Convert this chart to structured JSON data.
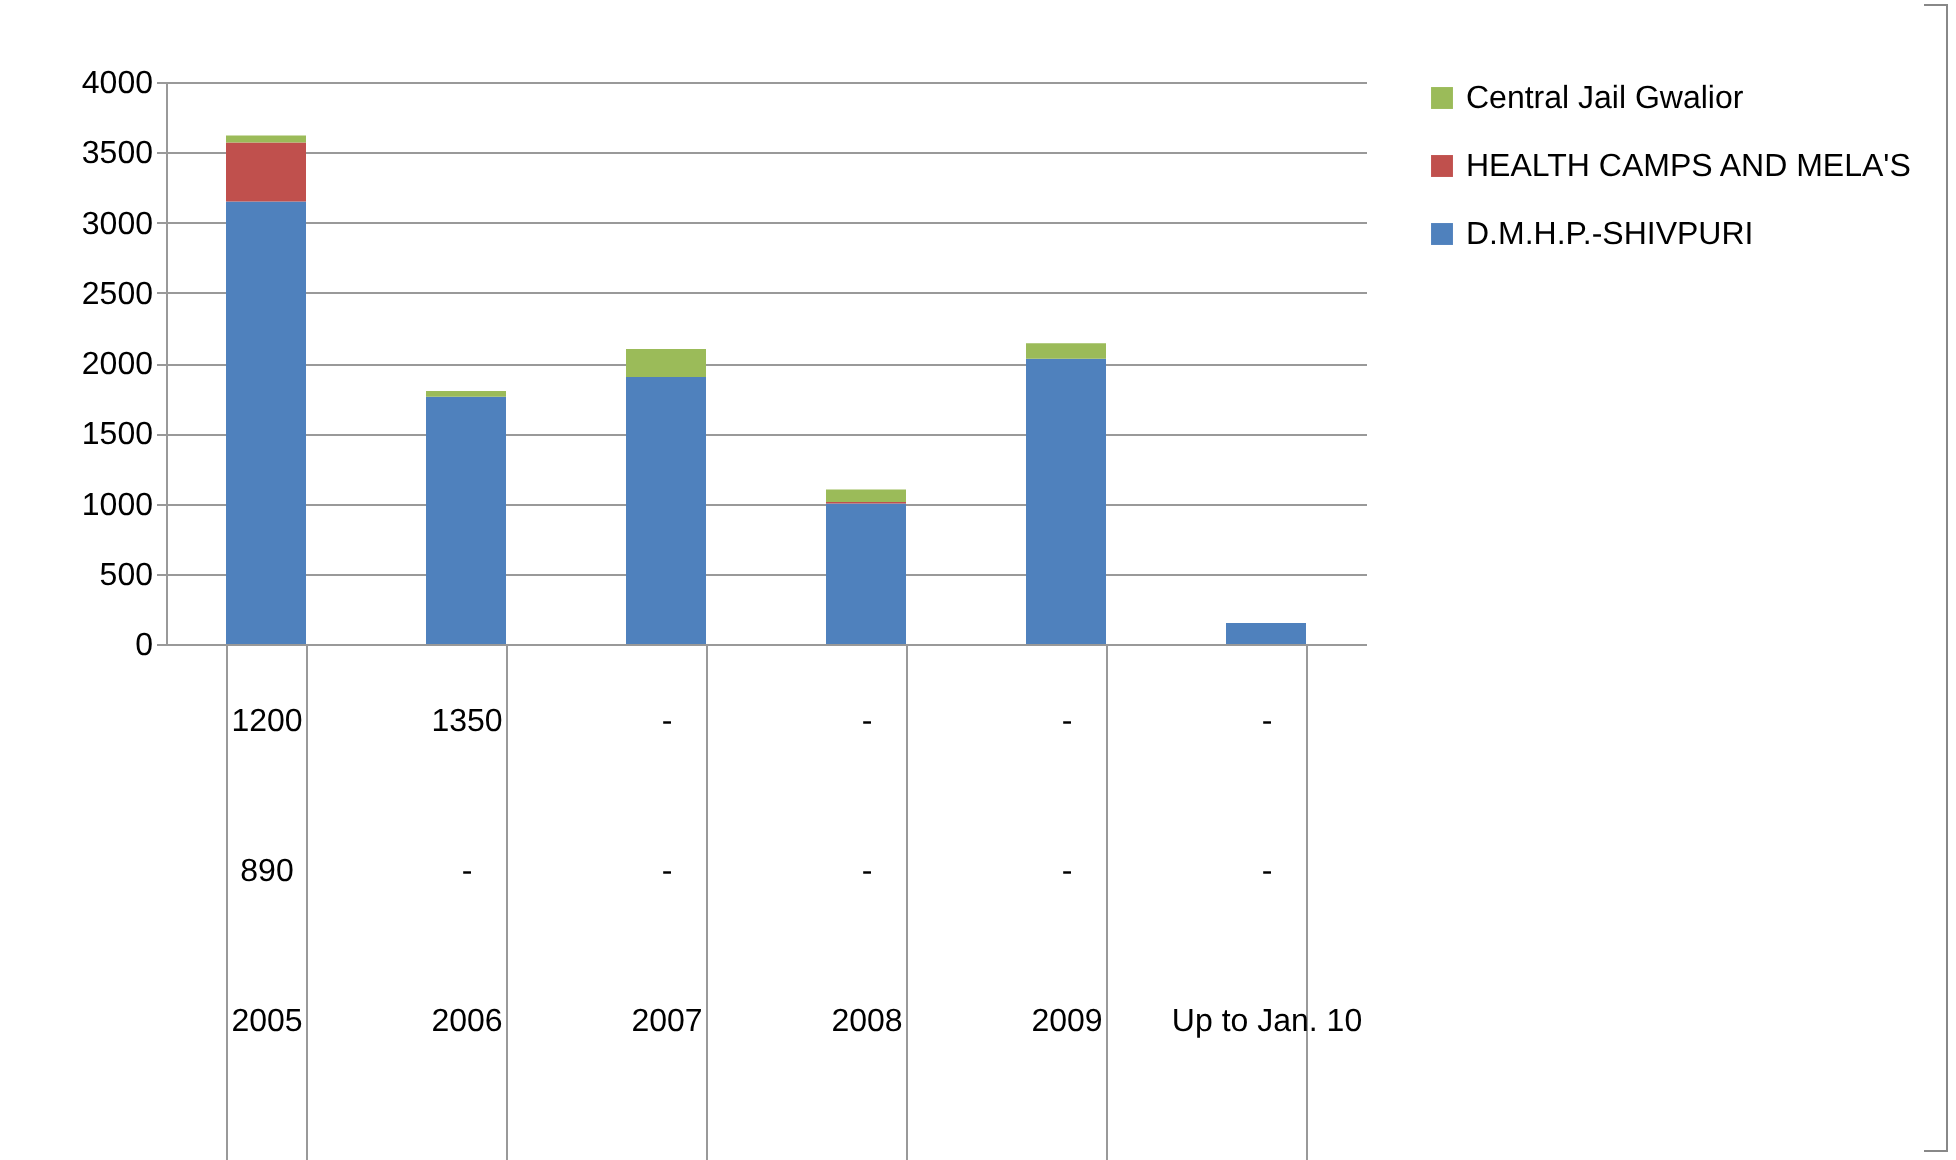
{
  "chart_data": {
    "type": "bar",
    "stacked": true,
    "categories": [
      "1200\n890\n2005",
      "1350\n-\n2006",
      "-\n-\n2007",
      "-\n-\n2008",
      "-\n-\n2009",
      "-\n-\nUp to Jan. 10"
    ],
    "series": [
      {
        "name": "D.M.H.P.-SHIVPURI",
        "color": "#4f81bd",
        "values": [
          3150,
          1760,
          1900,
          1000,
          2030,
          150
        ]
      },
      {
        "name": "HEALTH CAMPS AND MELA'S",
        "color": "#c0504d",
        "values": [
          420,
          0,
          0,
          10,
          0,
          0
        ]
      },
      {
        "name": "Central Jail Gwalior",
        "color": "#9bbb59",
        "values": [
          50,
          40,
          200,
          90,
          110,
          0
        ]
      }
    ],
    "ylim": [
      0,
      4000
    ],
    "yticks": [
      0,
      500,
      1000,
      1500,
      2000,
      2500,
      3000,
      3500,
      4000
    ],
    "grid": "y",
    "legend": "right"
  }
}
